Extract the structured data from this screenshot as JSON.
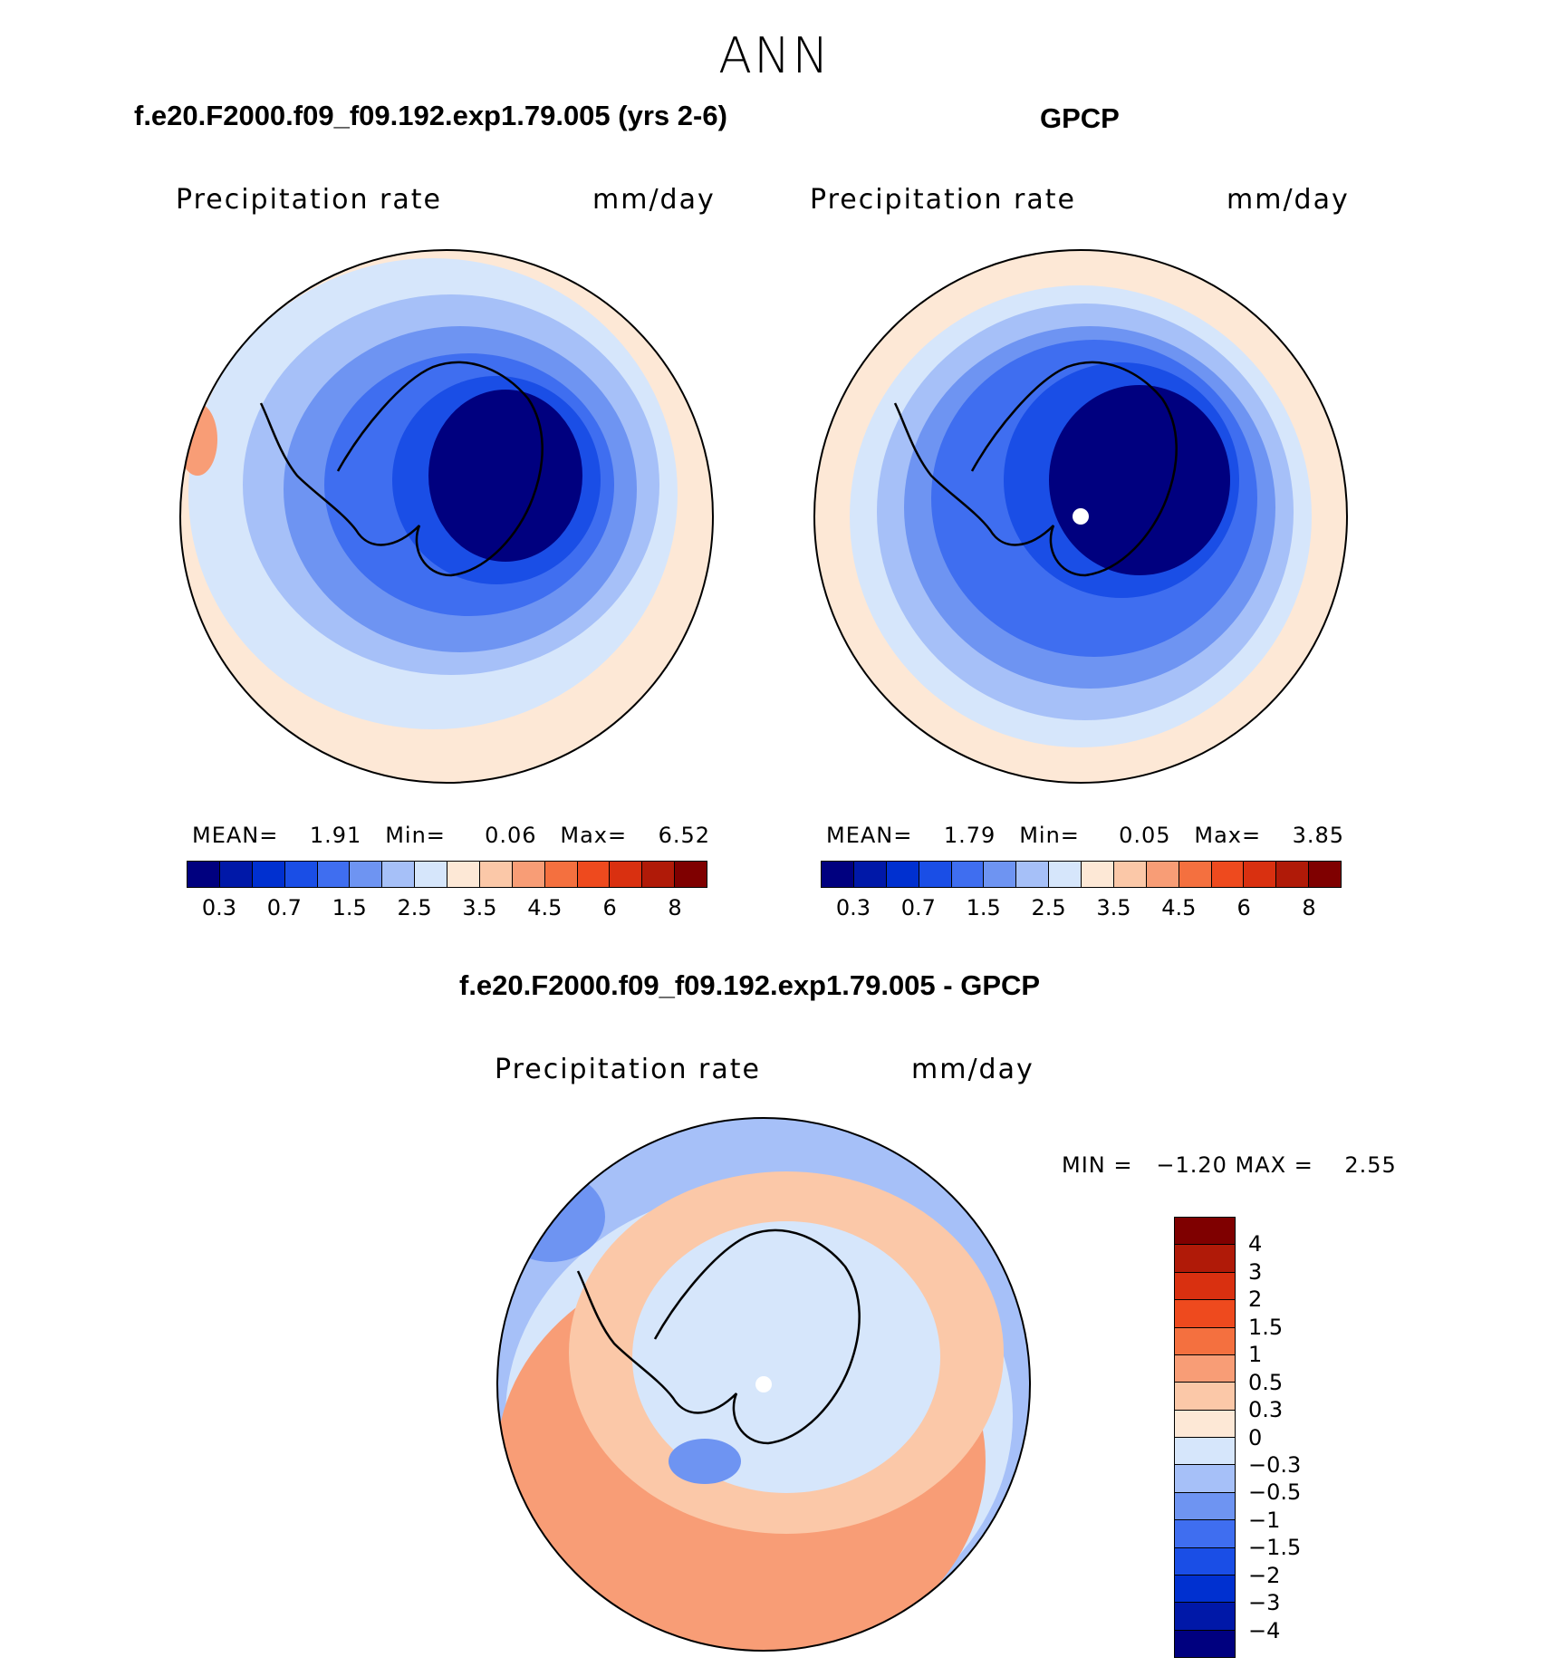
{
  "figure": {
    "season": "ANN",
    "units": "mm/day",
    "variable": "Precipitation rate"
  },
  "panels": {
    "model": {
      "title": "f.e20.F2000.f09_f09.192.exp1.79.005 (yrs 2-6)",
      "subtitle_left": "Precipitation rate",
      "subtitle_right": "mm/day",
      "stats": {
        "mean_label": "MEAN=",
        "mean": "1.91",
        "min_label": "Min=",
        "min": "0.06",
        "max_label": "Max=",
        "max": "6.52"
      }
    },
    "obs": {
      "title": "GPCP",
      "subtitle_left": "Precipitation rate",
      "subtitle_right": "mm/day",
      "stats": {
        "mean_label": "MEAN=",
        "mean": "1.79",
        "min_label": "Min=",
        "min": "0.05",
        "max_label": "Max=",
        "max": "3.85"
      }
    },
    "diff": {
      "title": "f.e20.F2000.f09_f09.192.exp1.79.005 - GPCP",
      "subtitle_left": "Precipitation rate",
      "subtitle_right": "mm/day",
      "minmax": "MIN =   −1.20 MAX =    2.55"
    }
  },
  "colorbar_main": {
    "colors": [
      "#00007f",
      "#0018a8",
      "#0030d0",
      "#1a4ee6",
      "#3f6ef0",
      "#6e94f2",
      "#a6c0f8",
      "#d6e6fb",
      "#fde8d6",
      "#fbc8a8",
      "#f89d76",
      "#f4703f",
      "#ee4a1e",
      "#d93010",
      "#b01a08",
      "#7f0000"
    ],
    "tick_labels": [
      "0.3",
      "0.7",
      "1.5",
      "2.5",
      "3.5",
      "4.5",
      "6",
      "8"
    ]
  },
  "colorbar_diff": {
    "colors_top_to_bottom": [
      "#7f0000",
      "#b01a08",
      "#d93010",
      "#ee4a1e",
      "#f4703f",
      "#f89d76",
      "#fbc8a8",
      "#fde8d6",
      "#d6e6fb",
      "#a6c0f8",
      "#6e94f2",
      "#3f6ef0",
      "#1a4ee6",
      "#0030d0",
      "#0018a8",
      "#00007f"
    ],
    "tick_labels_top_to_bottom": [
      "4",
      "3",
      "2",
      "1.5",
      "1",
      "0.5",
      "0.3",
      "0",
      "−0.3",
      "−0.5",
      "−1",
      "−1.5",
      "−2",
      "−3",
      "−4"
    ]
  },
  "map_colors": {
    "ocean_far": "#fde8d6",
    "mid": "#d6e6fb",
    "ring2": "#a6c0f8",
    "ring3": "#6e94f2",
    "ring4": "#3f6ef0",
    "inner": "#1a4ee6",
    "core": "#00007f",
    "diff_warm": "#f89d76",
    "diff_warm2": "#fbc8a8",
    "diff_cool": "#a6c0f8",
    "diff_cool2": "#6e94f2",
    "pole_dot": "#ffffff"
  }
}
